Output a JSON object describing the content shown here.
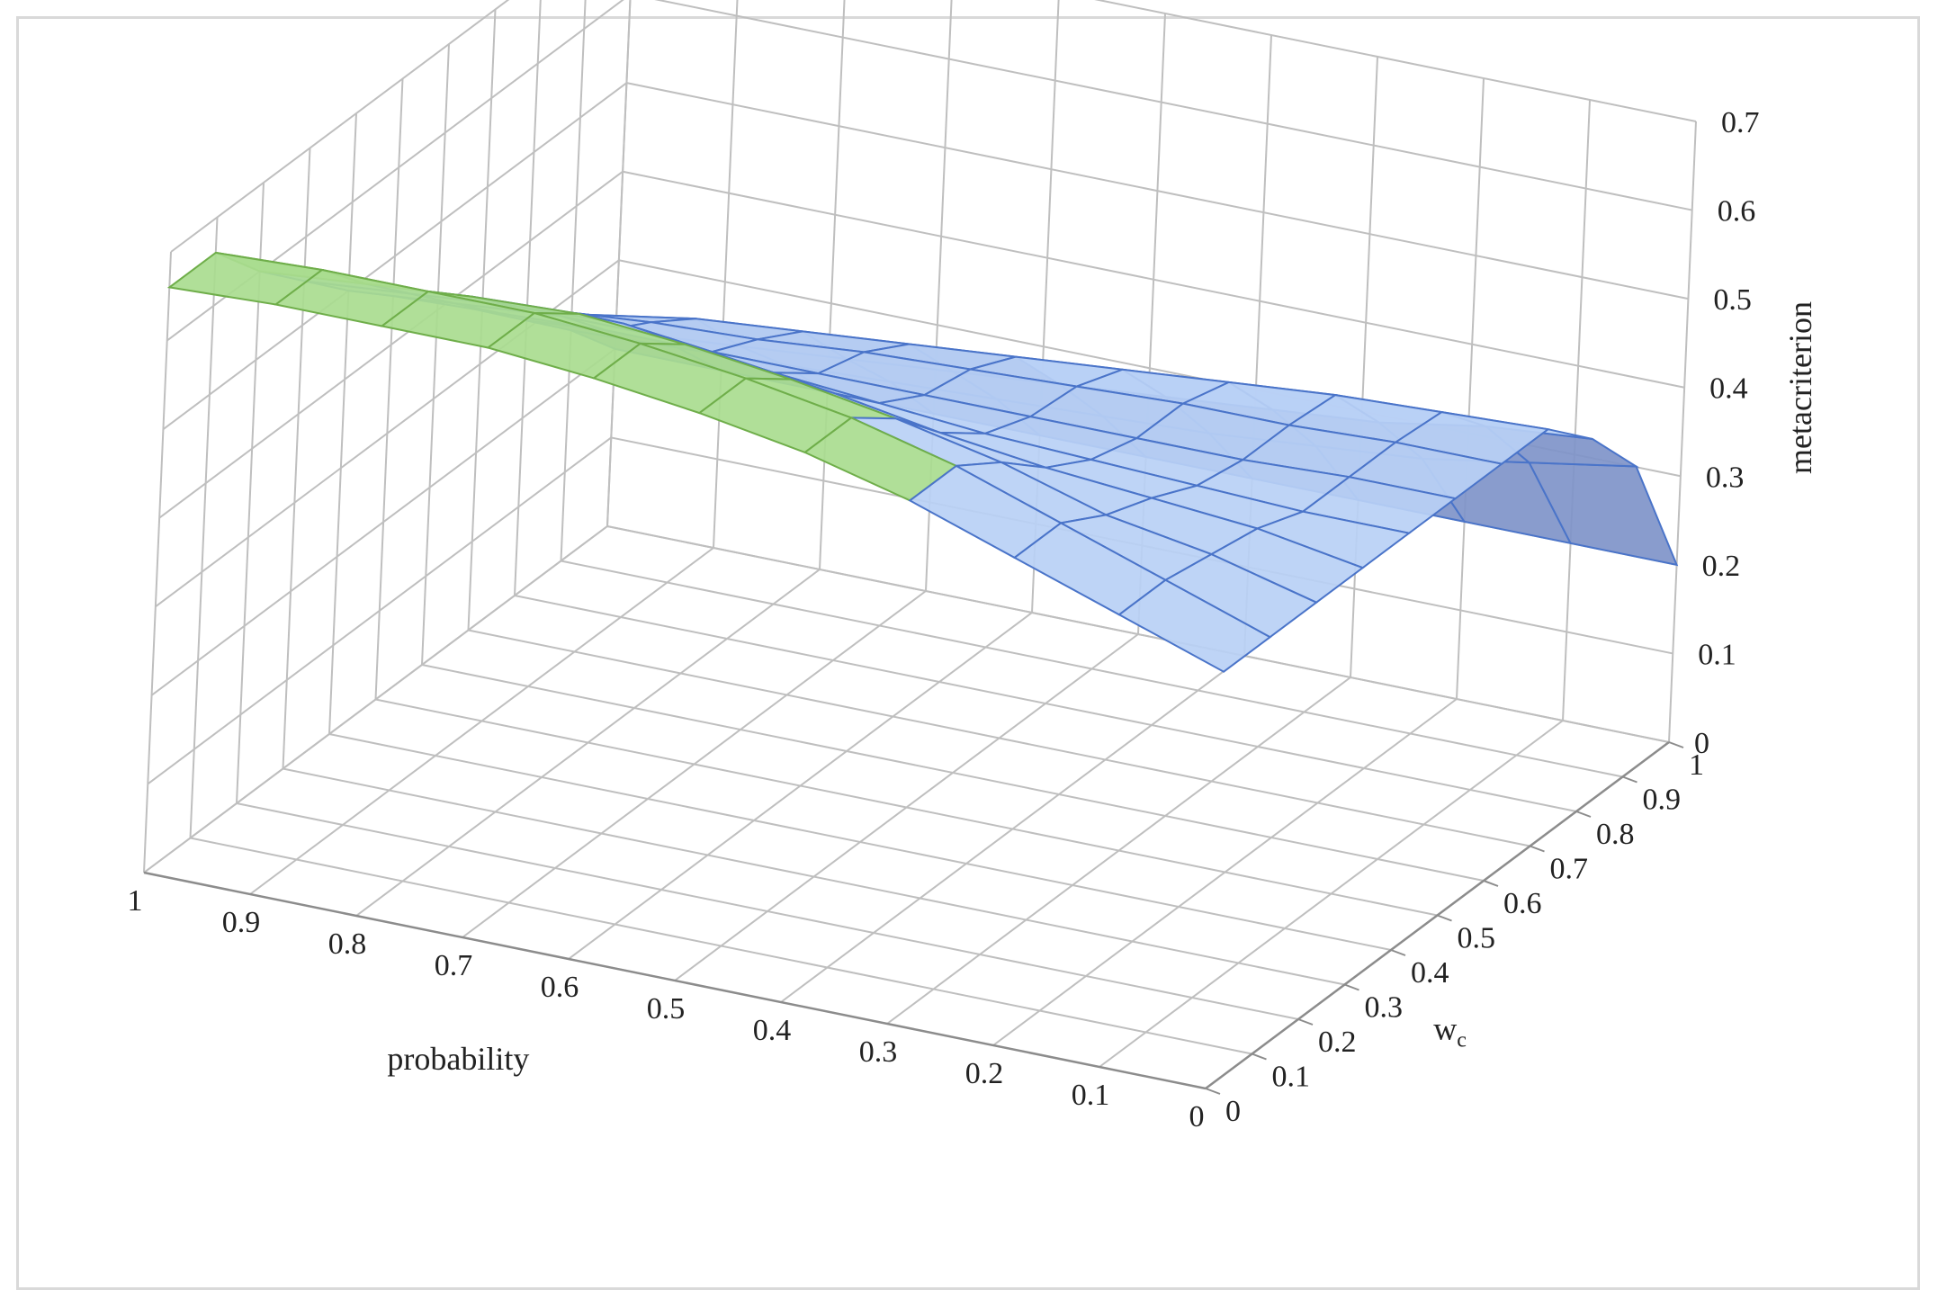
{
  "chart_data": {
    "type": "surface",
    "title": "",
    "xlabel": "probability",
    "ylabel": "w",
    "ylabel_subscript": "c",
    "zlabel": "metacriterion",
    "x": [
      1,
      0.9,
      0.8,
      0.7,
      0.6,
      0.5,
      0.4,
      0.3,
      0.2,
      0.1,
      0
    ],
    "x_ticks": [
      "1",
      "0.9",
      "0.8",
      "0.7",
      "0.6",
      "0.5",
      "0.4",
      "0.3",
      "0.2",
      "0.1",
      "0"
    ],
    "y": [
      0,
      0.1,
      0.2,
      0.3,
      0.4,
      0.5,
      0.6,
      0.7,
      0.8,
      0.9,
      1
    ],
    "y_ticks": [
      "0",
      "0.1",
      "0.2",
      "0.3",
      "0.4",
      "0.5",
      "0.6",
      "0.7",
      "0.8",
      "0.9",
      "1"
    ],
    "z_ticks": [
      "0",
      "0.1",
      "0.2",
      "0.3",
      "0.4",
      "0.5",
      "0.6",
      "0.7"
    ],
    "zlim": [
      0,
      0.7
    ],
    "grid": true,
    "z": [
      [
        0.66,
        0.665,
        0.665,
        0.665,
        0.655,
        0.64,
        0.62,
        0.59,
        0.55,
        0.51,
        0.47
      ],
      [
        0.66,
        0.665,
        0.665,
        0.665,
        0.655,
        0.64,
        0.62,
        0.59,
        0.55,
        0.51,
        0.47
      ],
      [
        0.6,
        0.61,
        0.62,
        0.625,
        0.615,
        0.6,
        0.58,
        0.555,
        0.52,
        0.5,
        0.47
      ],
      [
        0.55,
        0.56,
        0.57,
        0.575,
        0.56,
        0.545,
        0.525,
        0.51,
        0.5,
        0.49,
        0.47
      ],
      [
        0.5,
        0.51,
        0.52,
        0.52,
        0.505,
        0.495,
        0.485,
        0.48,
        0.475,
        0.47,
        0.47
      ],
      [
        0.455,
        0.46,
        0.465,
        0.465,
        0.465,
        0.465,
        0.465,
        0.465,
        0.465,
        0.47,
        0.47
      ],
      [
        0.41,
        0.425,
        0.435,
        0.44,
        0.45,
        0.455,
        0.46,
        0.465,
        0.465,
        0.47,
        0.47
      ],
      [
        0.36,
        0.38,
        0.4,
        0.41,
        0.42,
        0.43,
        0.44,
        0.45,
        0.46,
        0.465,
        0.47
      ],
      [
        0.31,
        0.32,
        0.33,
        0.34,
        0.35,
        0.36,
        0.37,
        0.38,
        0.39,
        0.41,
        0.42
      ],
      [
        0.26,
        0.265,
        0.27,
        0.275,
        0.28,
        0.285,
        0.29,
        0.3,
        0.31,
        0.33,
        0.35
      ],
      [
        0.2,
        0.2,
        0.2,
        0.2,
        0.2,
        0.2,
        0.2,
        0.2,
        0.2,
        0.2,
        0.2
      ]
    ],
    "band_colors": {
      "0-0.2": "#f7b04a",
      "0.2-0.4": "#7f94c9",
      "0.4-0.6": "#b9d0f5",
      "0.6-0.8": "#a9dc8f"
    }
  }
}
